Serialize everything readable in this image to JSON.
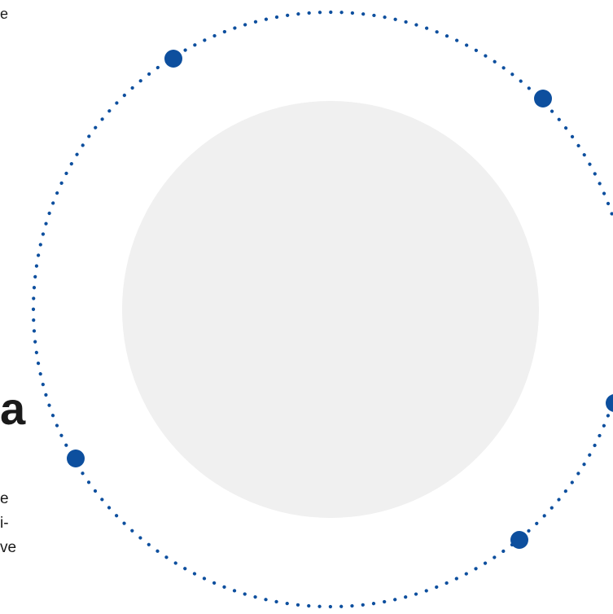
{
  "text_fragments": {
    "top": "e",
    "heading": "a",
    "body_lines": [
      "e",
      "i-",
      "ve"
    ]
  },
  "colors": {
    "accent": "#0d4f9e",
    "circle_fill": "#f0f0f0",
    "text": "#1a1a1a"
  },
  "orbit": {
    "marker_count": 5,
    "dot_style": "dotted"
  }
}
